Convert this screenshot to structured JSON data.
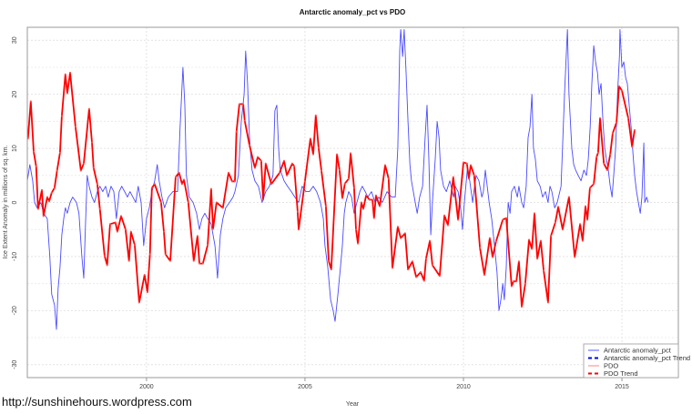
{
  "chart_data": {
    "type": "line",
    "title": "Antarctic anomaly_pct vs PDO",
    "xlabel": "Year",
    "ylabel": "Ice Extent Anomaly in millions of sq. km.",
    "xlim": [
      1996.24,
      2016.78
    ],
    "ylim": [
      -32.4,
      32.4
    ],
    "x_ticks": [
      2000,
      2005,
      2010,
      2015
    ],
    "y_ticks": [
      -30,
      -20,
      -10,
      0,
      10,
      20,
      30
    ],
    "grid": true,
    "legend_position": "bottom-right",
    "legend": [
      {
        "label": "Antarctic anomaly_pct",
        "color": "#5555ff",
        "style": "solid"
      },
      {
        "label": "Antarctic anomaly_pct Trend",
        "color": "#0000ff",
        "style": "dashed"
      },
      {
        "label": "PDO",
        "color": "#ff8080",
        "style": "solid"
      },
      {
        "label": "PDO Trend",
        "color": "#ff0000",
        "style": "dashed"
      }
    ],
    "series": [
      {
        "name": "Antarctic anomaly_pct",
        "color": "#2a2aff",
        "x": [
          1996.24,
          1996.32,
          1996.41,
          1996.47,
          1996.55,
          1996.67,
          1996.75,
          1996.87,
          1996.95,
          1997.01,
          1997.1,
          1997.16,
          1997.21,
          1997.27,
          1997.33,
          1997.39,
          1997.44,
          1997.5,
          1997.59,
          1997.67,
          1997.79,
          1997.87,
          1997.96,
          1998.02,
          1998.07,
          1998.13,
          1998.19,
          1998.28,
          1998.36,
          1998.45,
          1998.53,
          1998.62,
          1998.71,
          1998.79,
          1998.88,
          1998.97,
          1999.05,
          1999.14,
          1999.22,
          1999.31,
          1999.4,
          1999.48,
          1999.57,
          1999.66,
          1999.74,
          1999.83,
          1999.91,
          2000.0,
          2000.09,
          2000.17,
          2000.26,
          2000.34,
          2000.4,
          2000.49,
          2000.57,
          2000.69,
          2000.83,
          2000.98,
          2001.06,
          2001.15,
          2001.21,
          2001.26,
          2001.35,
          2001.47,
          2001.58,
          2001.67,
          2001.75,
          2001.84,
          2001.93,
          2002.04,
          2002.16,
          2002.24,
          2002.33,
          2002.41,
          2002.5,
          2002.62,
          2002.73,
          2002.79,
          2002.9,
          2002.99,
          2003.08,
          2003.13,
          2003.19,
          2003.25,
          2003.33,
          2003.42,
          2003.53,
          2003.65,
          2003.76,
          2003.88,
          2003.99,
          2004.05,
          2004.11,
          2004.17,
          2004.22,
          2004.34,
          2004.45,
          2004.57,
          2004.68,
          2004.8,
          2004.91,
          2005.03,
          2005.14,
          2005.26,
          2005.37,
          2005.49,
          2005.58,
          2005.63,
          2005.72,
          2005.81,
          2005.89,
          2005.95,
          2006.04,
          2006.12,
          2006.18,
          2006.24,
          2006.29,
          2006.38,
          2006.47,
          2006.55,
          2006.64,
          2006.73,
          2006.81,
          2006.9,
          2006.98,
          2007.1,
          2007.21,
          2007.33,
          2007.44,
          2007.59,
          2007.73,
          2007.85,
          2007.93,
          2007.99,
          2008.02,
          2008.08,
          2008.13,
          2008.19,
          2008.25,
          2008.31,
          2008.36,
          2008.45,
          2008.54,
          2008.62,
          2008.71,
          2008.79,
          2008.85,
          2008.91,
          2008.97,
          2009.02,
          2009.11,
          2009.17,
          2009.23,
          2009.28,
          2009.37,
          2009.46,
          2009.57,
          2009.69,
          2009.74,
          2009.83,
          2009.91,
          2009.97,
          2010.03,
          2010.12,
          2010.2,
          2010.29,
          2010.35,
          2010.4,
          2010.49,
          2010.58,
          2010.63,
          2010.69,
          2010.75,
          2010.81,
          2010.89,
          2010.98,
          2011.06,
          2011.12,
          2011.18,
          2011.24,
          2011.29,
          2011.35,
          2011.41,
          2011.47,
          2011.52,
          2011.61,
          2011.7,
          2011.75,
          2011.84,
          2011.9,
          2011.98,
          2012.04,
          2012.1,
          2012.16,
          2012.21,
          2012.27,
          2012.33,
          2012.42,
          2012.5,
          2012.59,
          2012.67,
          2012.73,
          2012.79,
          2012.88,
          2012.96,
          2013.08,
          2013.19,
          2013.25,
          2013.28,
          2013.33,
          2013.42,
          2013.48,
          2013.54,
          2013.62,
          2013.71,
          2013.8,
          2013.88,
          2013.94,
          2014.0,
          2014.05,
          2014.11,
          2014.17,
          2014.23,
          2014.28,
          2014.34,
          2014.4,
          2014.46,
          2014.51,
          2014.57,
          2014.63,
          2014.69,
          2014.74,
          2014.8,
          2014.86,
          2014.92,
          2014.94,
          2015.0,
          2015.06,
          2015.12,
          2015.17,
          2015.23,
          2015.29,
          2015.35,
          2015.4,
          2015.46,
          2015.52,
          2015.58,
          2015.63,
          2015.69,
          2015.72,
          2015.78,
          2015.83
        ],
        "y": [
          4,
          7,
          4,
          0,
          -1,
          0,
          -2,
          -3,
          -10,
          -17,
          -19,
          -23.5,
          -16,
          -12,
          -6,
          -3,
          -1,
          -2,
          0,
          1,
          0,
          -2,
          -10,
          -14,
          -5,
          5,
          3,
          1,
          0,
          2,
          3,
          2,
          3,
          1,
          3,
          2,
          -3,
          2,
          3,
          2,
          1,
          2,
          1,
          0,
          3,
          0,
          -8,
          -3,
          -1,
          2,
          4,
          7,
          4,
          1,
          -1,
          1,
          2,
          2,
          14,
          25,
          18,
          5,
          1,
          0,
          -2,
          -5,
          -3,
          -2,
          -3,
          -4,
          -8,
          -14,
          -6,
          -3,
          -1,
          0,
          1,
          2,
          5,
          15,
          20,
          28,
          22,
          12,
          6,
          4,
          3,
          0,
          2,
          3,
          5,
          17,
          18,
          10,
          6,
          4,
          3,
          2,
          1,
          0,
          3,
          2,
          2,
          3,
          2,
          0,
          -3,
          -8,
          -12,
          -18,
          -20,
          -22,
          -17,
          -12,
          -8,
          -2,
          0,
          2,
          1,
          -2,
          0,
          2,
          3,
          2,
          1,
          2,
          0,
          1,
          0,
          2,
          1,
          1,
          10,
          28,
          32,
          27,
          32,
          24,
          15,
          7,
          4,
          1,
          -2,
          1,
          3,
          12,
          18,
          8,
          -6,
          0,
          8,
          15,
          12,
          6,
          3,
          2,
          4,
          1,
          3,
          2,
          -1,
          -5,
          0,
          6,
          4,
          0,
          3,
          5,
          4,
          1,
          2,
          6,
          3,
          0,
          -3,
          -8,
          -13,
          -20,
          -18,
          -15,
          -18,
          -12,
          0,
          -2,
          2,
          3,
          1,
          3,
          0,
          -1,
          3,
          12,
          14,
          20,
          10,
          8,
          4,
          3,
          1,
          2,
          0,
          3,
          2,
          -1,
          0,
          3,
          20,
          28,
          32,
          20,
          10,
          7,
          6,
          5,
          4,
          6,
          5,
          8,
          14,
          22,
          29,
          26,
          24,
          20,
          22,
          15,
          10,
          8,
          6,
          3,
          1,
          5,
          10,
          20,
          27,
          32,
          25,
          26,
          23,
          22,
          18,
          14,
          9,
          5,
          2,
          0,
          -2,
          1,
          11,
          0,
          1,
          0
        ]
      },
      {
        "name": "PDO Trend",
        "color": "#ff0000",
        "x": [
          1996.26,
          1996.35,
          1996.44,
          1996.52,
          1996.58,
          1996.7,
          1996.75,
          1996.87,
          1996.93,
          1997.01,
          1997.1,
          1997.18,
          1997.27,
          1997.33,
          1997.44,
          1997.5,
          1997.59,
          1997.76,
          1997.93,
          1998.02,
          1998.19,
          1998.28,
          1998.33,
          1998.45,
          1998.53,
          1998.68,
          1998.76,
          1998.85,
          1999.02,
          1999.08,
          1999.2,
          1999.34,
          1999.45,
          1999.51,
          1999.63,
          1999.77,
          1999.94,
          2000.03,
          2000.11,
          2000.17,
          2000.26,
          2000.46,
          2000.55,
          2000.6,
          2000.75,
          2000.92,
          2001.03,
          2001.12,
          2001.18,
          2001.32,
          2001.49,
          2001.61,
          2001.67,
          2001.78,
          2001.93,
          2002.04,
          2002.1,
          2002.21,
          2002.41,
          2002.59,
          2002.7,
          2002.79,
          2002.84,
          2002.93,
          2003.05,
          2003.1,
          2003.25,
          2003.42,
          2003.51,
          2003.62,
          2003.68,
          2003.76,
          2003.94,
          2004.2,
          2004.34,
          2004.43,
          2004.6,
          2004.66,
          2004.77,
          2004.8,
          2005.0,
          2005.17,
          2005.26,
          2005.34,
          2005.43,
          2005.52,
          2005.66,
          2005.75,
          2005.83,
          2006.01,
          2006.09,
          2006.18,
          2006.26,
          2006.38,
          2006.44,
          2006.55,
          2006.61,
          2006.67,
          2006.78,
          2006.84,
          2006.93,
          2007.04,
          2007.13,
          2007.18,
          2007.24,
          2007.36,
          2007.53,
          2007.64,
          2007.76,
          2007.93,
          2008.02,
          2008.16,
          2008.25,
          2008.39,
          2008.51,
          2008.65,
          2008.76,
          2008.82,
          2008.94,
          2009.02,
          2009.25,
          2009.4,
          2009.51,
          2009.68,
          2009.83,
          2010.0,
          2010.11,
          2010.17,
          2010.23,
          2010.34,
          2010.52,
          2010.66,
          2010.83,
          2010.92,
          2011.03,
          2011.24,
          2011.35,
          2011.52,
          2011.58,
          2011.67,
          2011.75,
          2011.84,
          2011.95,
          2012.07,
          2012.16,
          2012.24,
          2012.33,
          2012.44,
          2012.53,
          2012.67,
          2012.76,
          2012.9,
          2012.99,
          2013.13,
          2013.33,
          2013.51,
          2013.68,
          2013.76,
          2013.85,
          2013.91,
          2013.99,
          2014.11,
          2014.2,
          2014.25,
          2014.31,
          2014.43,
          2014.54,
          2014.63,
          2014.71,
          2014.83,
          2014.91,
          2015.0,
          2015.2,
          2015.32,
          2015.4
        ],
        "y": [
          11.8,
          18.7,
          9.4,
          6.7,
          -1.2,
          2.3,
          -2.5,
          1,
          0.2,
          1.8,
          2.7,
          5.9,
          9.2,
          16,
          23.7,
          20.2,
          24,
          14,
          5.9,
          7.2,
          17.3,
          11.1,
          6.4,
          3.4,
          -1.2,
          -9.9,
          -11.6,
          -4,
          -3.7,
          -5.4,
          -2.5,
          -5,
          -10.8,
          -5.4,
          -7.9,
          -18.5,
          -13.4,
          -16.6,
          -9.6,
          2.7,
          3.4,
          0,
          -5.4,
          -9.6,
          -10.8,
          4.7,
          5.5,
          3.4,
          4.2,
          0,
          -10.8,
          -6.2,
          -11.3,
          -11.3,
          -7.9,
          2.5,
          -4.9,
          0,
          -1,
          5.5,
          3.9,
          3.9,
          13.1,
          18.2,
          18.2,
          15.1,
          10.6,
          6.4,
          8.4,
          7.7,
          0.5,
          7.2,
          3.4,
          5.5,
          7.7,
          5,
          7.2,
          6.7,
          -1.7,
          -5,
          3.9,
          11.8,
          8.9,
          16.1,
          10.1,
          5.9,
          -0.7,
          -10.8,
          -12.4,
          8.9,
          6,
          0.8,
          3.5,
          4.4,
          9.1,
          2.7,
          -5,
          -7.6,
          0,
          -1.2,
          1.3,
          0.5,
          0.5,
          -2.9,
          1.3,
          -0.7,
          6.9,
          4.4,
          -12.1,
          -4.5,
          -6.6,
          -5.7,
          -12.4,
          -10.9,
          -13.8,
          -12.9,
          -14.5,
          -10.4,
          -7.1,
          -11.6,
          -13.6,
          -2.4,
          -4.2,
          4.7,
          -3.2,
          7.4,
          7.2,
          4.4,
          6.9,
          5,
          -8.4,
          -13.4,
          -6.6,
          -10.1,
          -7.2,
          -3.2,
          -2.9,
          -15.5,
          -14.6,
          -14.6,
          -10.9,
          -19.3,
          -15,
          -6.9,
          -8.6,
          -2,
          -10.4,
          -7.1,
          -12.6,
          -18.5,
          -6.2,
          -3.7,
          -0.8,
          -5,
          1,
          -10.1,
          -4,
          -7.1,
          -0.7,
          -3.2,
          2.7,
          3.4,
          8.4,
          9.2,
          15.6,
          7.2,
          6,
          8.9,
          12.8,
          14.8,
          21.5,
          20.7,
          15.6,
          10.3,
          13.4
        ]
      }
    ]
  },
  "watermark": "http://sunshinehours.wordpress.com"
}
